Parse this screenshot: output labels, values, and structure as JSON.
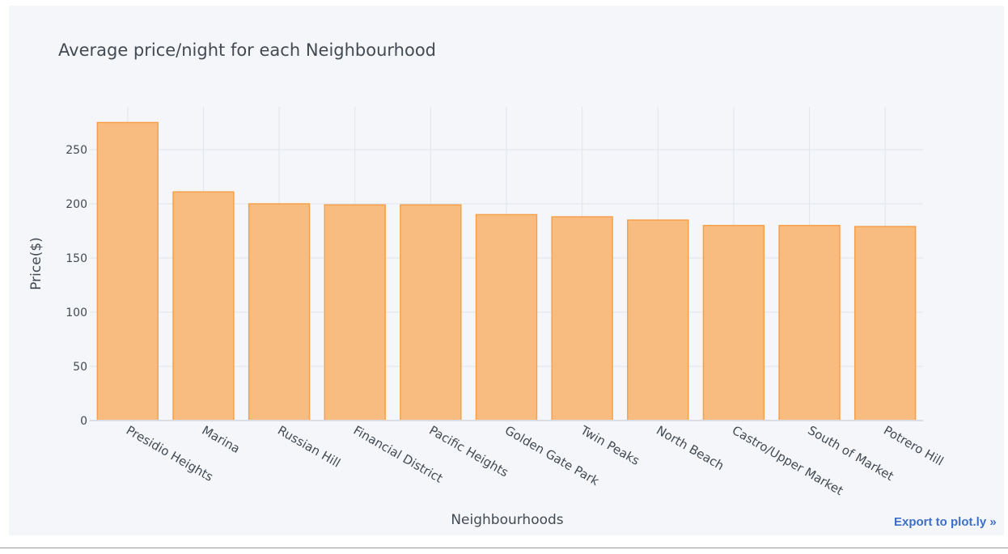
{
  "export_link": {
    "label": "Export to plot.ly »"
  },
  "chart_data": {
    "type": "bar",
    "title": "Average price/night for each Neighbourhood",
    "xlabel": "Neighbourhoods",
    "ylabel": "Price($)",
    "categories": [
      "Presidio Heights",
      "Marina",
      "Russian Hill",
      "Financial District",
      "Pacific Heights",
      "Golden Gate Park",
      "Twin Peaks",
      "North Beach",
      "Castro/Upper Market",
      "South of Market",
      "Potrero Hill"
    ],
    "values": [
      275,
      211,
      200,
      199,
      199,
      190,
      188,
      185,
      180,
      180,
      179
    ],
    "ylim": [
      0,
      275
    ],
    "yticks": [
      0,
      50,
      100,
      150,
      200,
      250
    ],
    "grid": true,
    "colors": {
      "bar_fill": "#f9bc80",
      "bar_stroke": "#f5a04a",
      "grid": "#e1e4ea",
      "text": "#444a52",
      "background": "#f4f6f9"
    }
  }
}
